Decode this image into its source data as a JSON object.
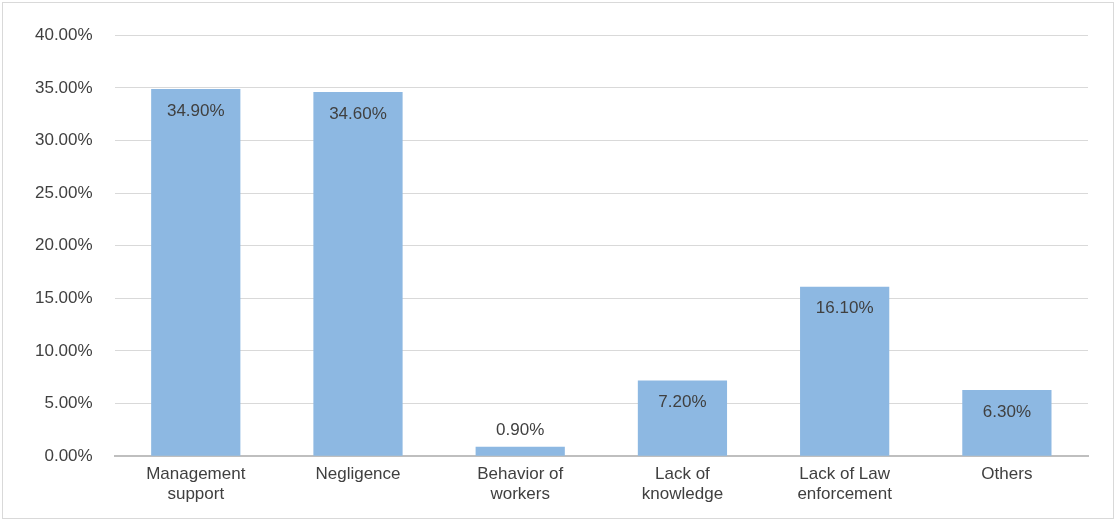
{
  "chart_data": {
    "type": "bar",
    "categories": [
      "Management support",
      "Negligence",
      "Behavior of workers",
      "Lack of knowledge",
      "Lack of Law enforcement",
      "Others"
    ],
    "values": [
      34.9,
      34.6,
      0.9,
      7.2,
      16.1,
      6.3
    ],
    "value_labels": [
      "34.90%",
      "34.60%",
      "0.90%",
      "7.20%",
      "16.10%",
      "6.30%"
    ],
    "color": "#8db8e2",
    "ylim": [
      0,
      40
    ],
    "yticks": [
      {
        "value": 0,
        "label": "0.00%"
      },
      {
        "value": 5,
        "label": "5.00%"
      },
      {
        "value": 10,
        "label": "10.00%"
      },
      {
        "value": 15,
        "label": "15.00%"
      },
      {
        "value": 20,
        "label": "20.00%"
      },
      {
        "value": 25,
        "label": "25.00%"
      },
      {
        "value": 30,
        "label": "30.00%"
      },
      {
        "value": 35,
        "label": "35.00%"
      },
      {
        "value": 40,
        "label": "40.00%"
      }
    ],
    "grid": "y",
    "legend": false
  }
}
